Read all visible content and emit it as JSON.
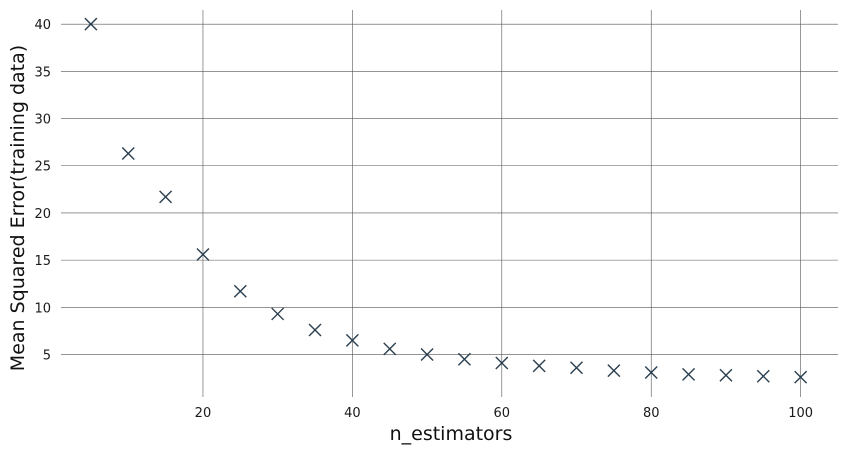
{
  "chart_data": {
    "type": "scatter",
    "title": "",
    "xlabel": "n_estimators",
    "ylabel": "Mean Squared Error(training data)",
    "xlim": [
      1,
      105
    ],
    "ylim": [
      0.5,
      41.5
    ],
    "xticks": [
      20,
      40,
      60,
      80,
      100
    ],
    "yticks": [
      5,
      10,
      15,
      20,
      25,
      30,
      35,
      40
    ],
    "grid": true,
    "marker": "x",
    "marker_color": "#2a3f4f",
    "grid_color": "#555555",
    "x": [
      5,
      10,
      15,
      20,
      25,
      30,
      35,
      40,
      45,
      50,
      55,
      60,
      65,
      70,
      75,
      80,
      85,
      90,
      95,
      100
    ],
    "y": [
      40.0,
      26.3,
      21.7,
      15.6,
      11.7,
      9.3,
      7.6,
      6.5,
      5.6,
      5.0,
      4.5,
      4.1,
      3.8,
      3.6,
      3.3,
      3.1,
      2.9,
      2.8,
      2.7,
      2.6
    ]
  }
}
